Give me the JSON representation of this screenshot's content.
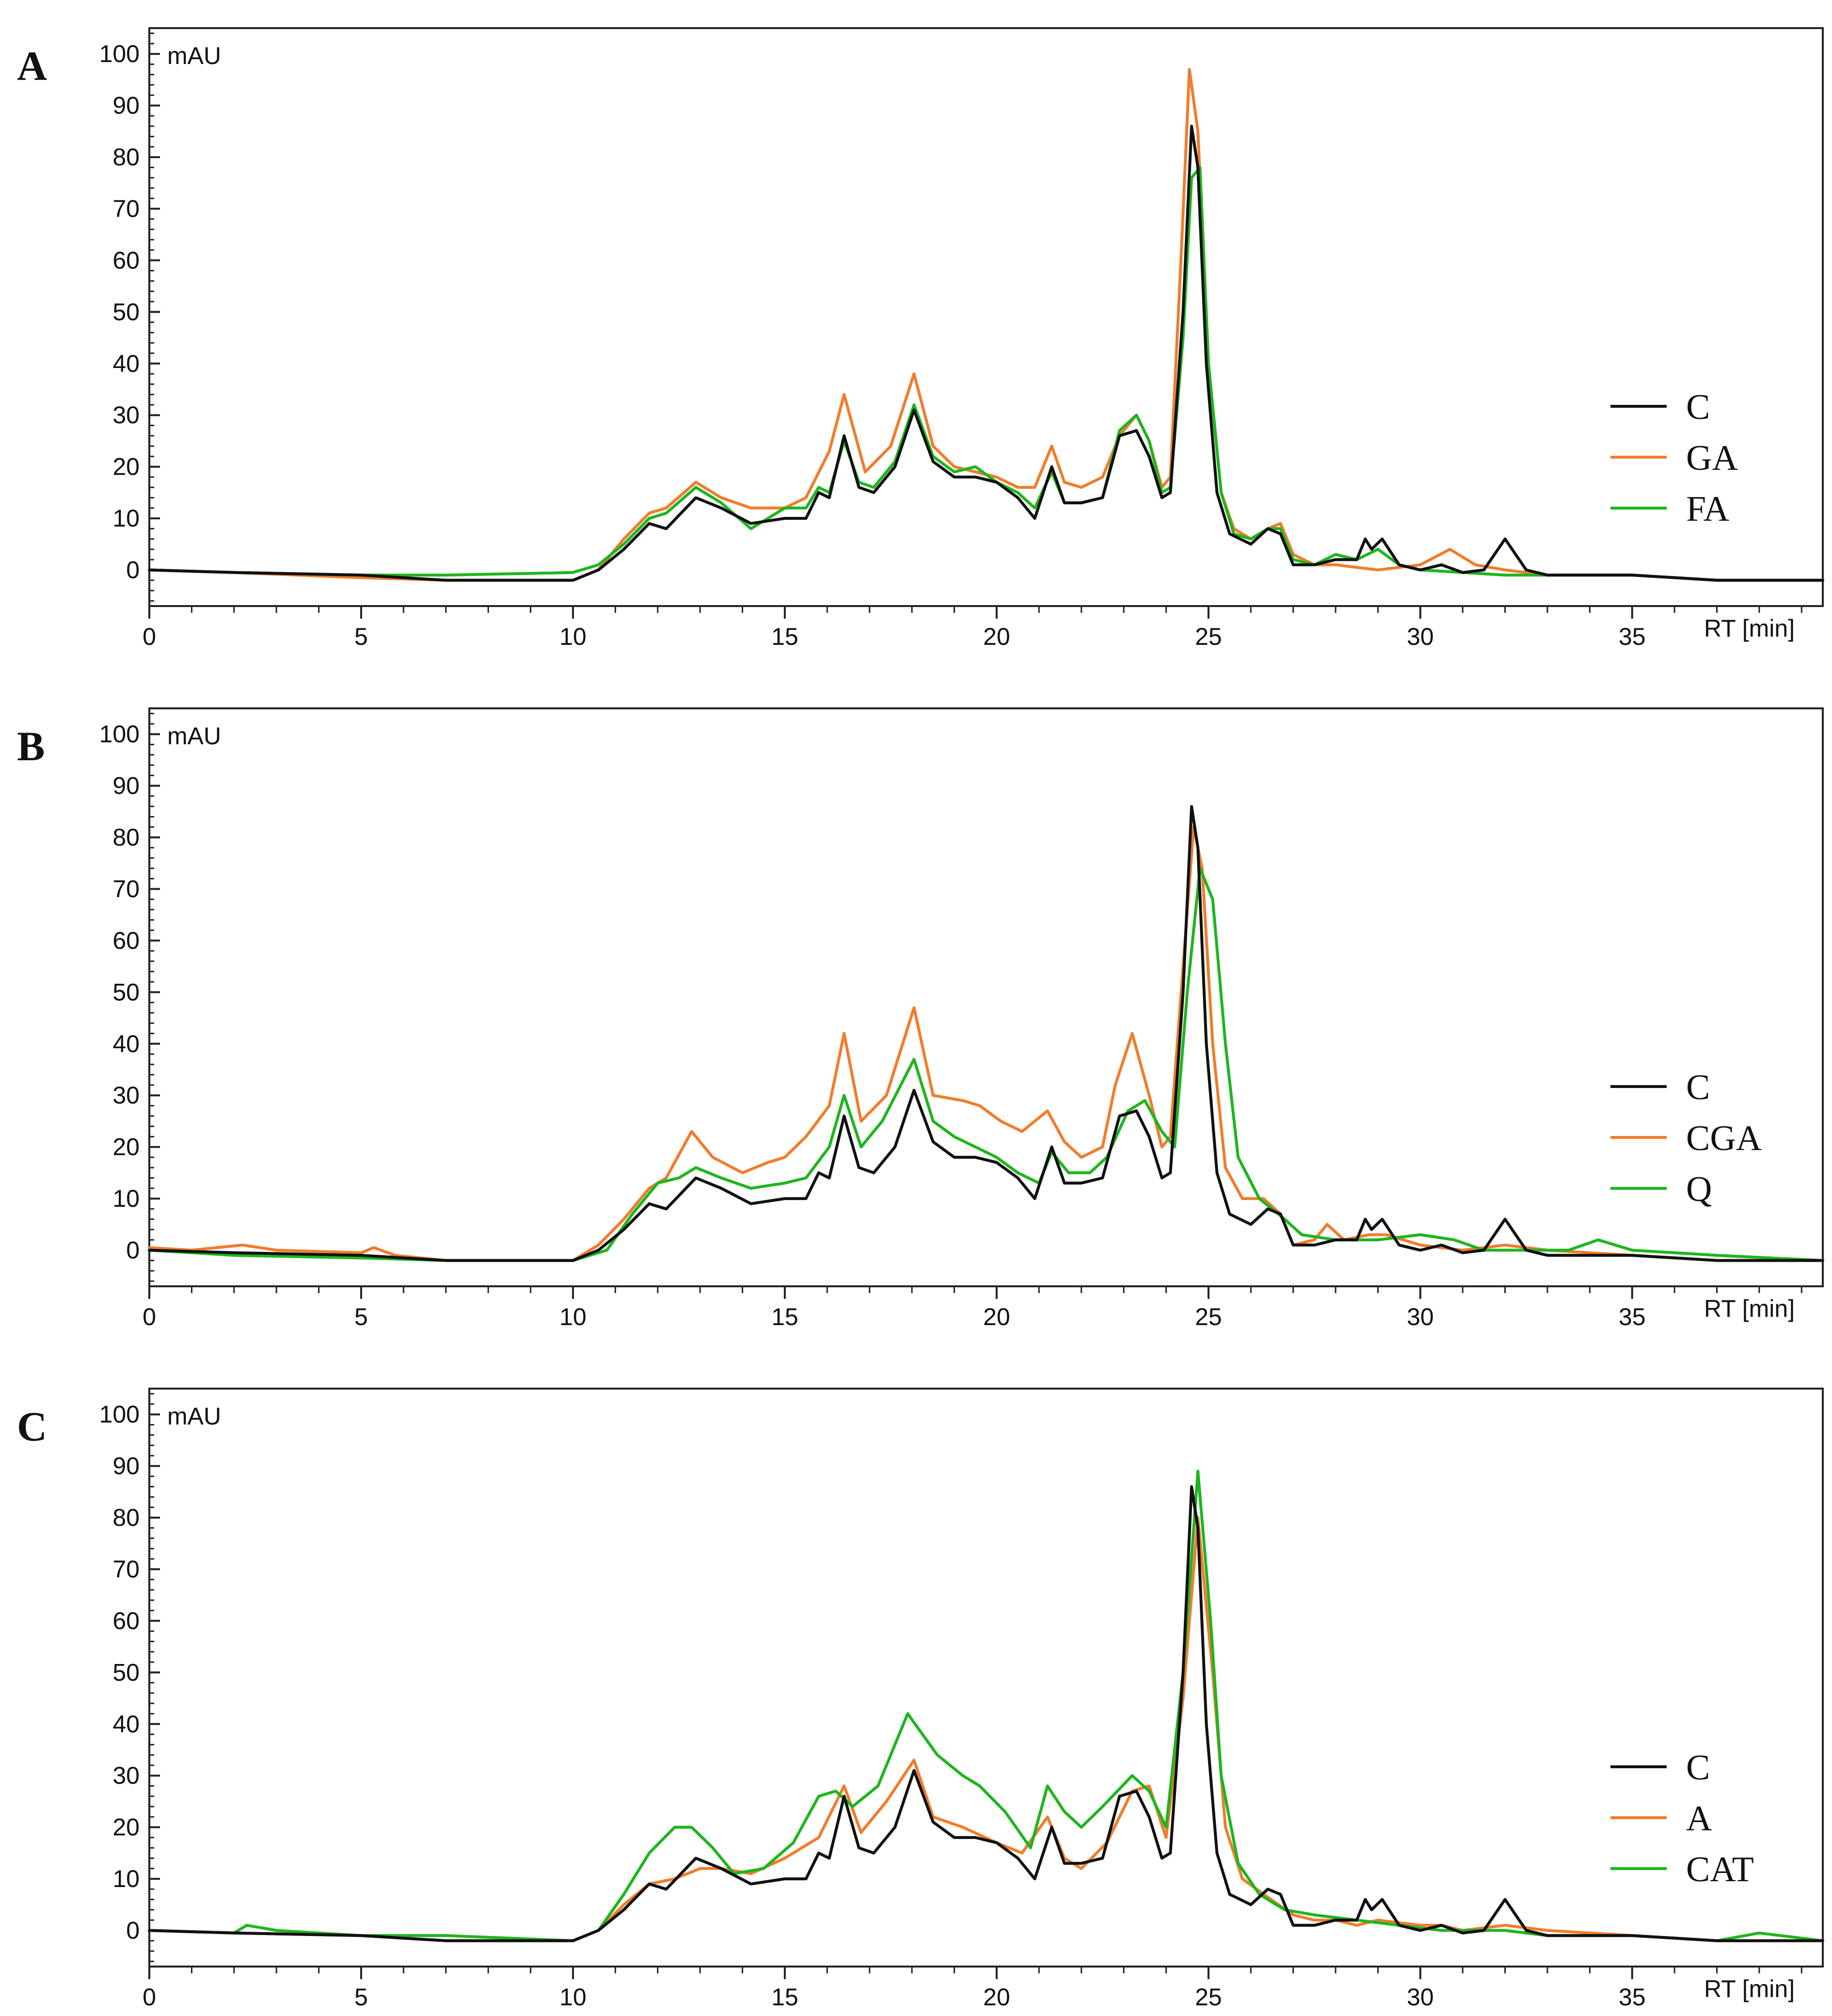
{
  "colors": {
    "C": "#111111",
    "orange": "#ef7d2d",
    "green": "#1fb51f"
  },
  "chart_data": [
    {
      "type": "line",
      "panel": "A",
      "ylabel": "mAU",
      "xlabel": "RT [min]",
      "xlim": [
        0,
        39.5
      ],
      "ylim": [
        -7,
        105
      ],
      "xticks": [
        0,
        5,
        10,
        15,
        20,
        25,
        30,
        35
      ],
      "yticks": [
        0,
        10,
        20,
        30,
        40,
        50,
        60,
        70,
        80,
        90,
        100
      ],
      "series": [
        {
          "name": "C",
          "color": "#111111",
          "x": [
            0,
            2,
            5,
            7,
            10,
            10.6,
            11.2,
            11.8,
            12.2,
            12.9,
            13.5,
            14.2,
            15,
            15.5,
            15.8,
            16.05,
            16.4,
            16.75,
            17.1,
            17.6,
            18.05,
            18.5,
            19,
            19.5,
            20,
            20.5,
            20.9,
            21.3,
            21.6,
            22,
            22.5,
            22.9,
            23.3,
            23.6,
            23.9,
            24.1,
            24.4,
            24.6,
            24.75,
            24.95,
            25.2,
            25.5,
            26,
            26.4,
            26.7,
            27,
            27.5,
            28,
            28.5,
            28.7,
            28.85,
            29.1,
            29.5,
            30,
            30.5,
            31,
            31.5,
            32,
            32.5,
            33,
            35,
            37,
            39.5
          ],
          "y": [
            0,
            -0.5,
            -1,
            -2,
            -2,
            0,
            4,
            9,
            8,
            14,
            12,
            9,
            10,
            10,
            15,
            14,
            26,
            16,
            15,
            20,
            31,
            21,
            18,
            18,
            17,
            14,
            10,
            20,
            13,
            13,
            14,
            26,
            27,
            22,
            14,
            15,
            50,
            86,
            78,
            40,
            15,
            7,
            5,
            8,
            7,
            1,
            1,
            2,
            2,
            6,
            4,
            6,
            1,
            0,
            1,
            -0.5,
            0,
            6,
            0,
            -1,
            -1,
            -2,
            -2
          ]
        },
        {
          "name": "GA",
          "color": "#ef7d2d",
          "x": [
            0,
            2,
            5,
            7,
            10,
            10.6,
            11.2,
            11.8,
            12.2,
            12.9,
            13.5,
            14.2,
            15,
            15.5,
            16.05,
            16.4,
            16.9,
            17.5,
            18.05,
            18.5,
            19,
            19.5,
            20,
            20.5,
            20.9,
            21.3,
            21.6,
            22,
            22.5,
            22.9,
            23.3,
            23.6,
            23.9,
            24.1,
            24.35,
            24.55,
            24.75,
            25,
            25.3,
            25.6,
            26,
            26.4,
            26.7,
            27,
            27.5,
            28,
            29,
            30,
            30.7,
            31.3,
            32,
            33,
            35,
            37,
            39.5
          ],
          "y": [
            0,
            -0.5,
            -1.5,
            -2,
            -2,
            0,
            6,
            11,
            12,
            17,
            14,
            12,
            12,
            14,
            23,
            34,
            19,
            24,
            38,
            24,
            20,
            19,
            18,
            16,
            16,
            24,
            17,
            16,
            18,
            26,
            30,
            25,
            16,
            18,
            60,
            97,
            85,
            40,
            15,
            8,
            6,
            8,
            9,
            3,
            1,
            1,
            0,
            1,
            4,
            1,
            0,
            -1,
            -1,
            -2,
            -2
          ]
        },
        {
          "name": "FA",
          "color": "#1fb51f",
          "x": [
            0,
            2,
            5,
            7,
            10,
            10.6,
            11.2,
            11.8,
            12.2,
            12.9,
            13.5,
            14.2,
            15,
            15.5,
            15.8,
            16.05,
            16.4,
            16.75,
            17.1,
            17.6,
            18.05,
            18.5,
            19,
            19.5,
            20,
            20.5,
            20.9,
            21.3,
            21.6,
            22,
            22.5,
            22.9,
            23.3,
            23.6,
            23.9,
            24.1,
            24.4,
            24.6,
            24.8,
            25,
            25.3,
            25.6,
            26,
            26.4,
            26.7,
            27,
            27.5,
            28,
            28.5,
            29,
            29.5,
            30,
            31,
            32,
            33,
            35,
            37,
            39.5
          ],
          "y": [
            0,
            -0.5,
            -1,
            -1,
            -0.5,
            1,
            5,
            10,
            11,
            16,
            13,
            8,
            12,
            12,
            16,
            15,
            25,
            17,
            16,
            21,
            32,
            22,
            19,
            20,
            17,
            15,
            12,
            19,
            13,
            13,
            14,
            27,
            30,
            25,
            15,
            16,
            45,
            76,
            78,
            40,
            15,
            7,
            6,
            8,
            8,
            2,
            1,
            3,
            2,
            4,
            1,
            0,
            -0.5,
            -1,
            -1,
            -1,
            -2,
            -2
          ]
        }
      ],
      "legend": [
        "C",
        "GA",
        "FA"
      ]
    },
    {
      "type": "line",
      "panel": "B",
      "ylabel": "mAU",
      "xlabel": "RT [min]",
      "xlim": [
        0,
        39.5
      ],
      "ylim": [
        -7,
        105
      ],
      "xticks": [
        0,
        5,
        10,
        15,
        20,
        25,
        30,
        35
      ],
      "yticks": [
        0,
        10,
        20,
        30,
        40,
        50,
        60,
        70,
        80,
        90,
        100
      ],
      "series": [
        {
          "name": "C",
          "color": "#111111",
          "x": [
            0,
            2,
            5,
            7,
            10,
            10.6,
            11.2,
            11.8,
            12.2,
            12.9,
            13.5,
            14.2,
            15,
            15.5,
            15.8,
            16.05,
            16.4,
            16.75,
            17.1,
            17.6,
            18.05,
            18.5,
            19,
            19.5,
            20,
            20.5,
            20.9,
            21.3,
            21.6,
            22,
            22.5,
            22.9,
            23.3,
            23.6,
            23.9,
            24.1,
            24.4,
            24.6,
            24.75,
            24.95,
            25.2,
            25.5,
            26,
            26.4,
            26.7,
            27,
            27.5,
            28,
            28.5,
            28.7,
            28.85,
            29.1,
            29.5,
            30,
            30.5,
            31,
            31.5,
            32,
            32.5,
            33,
            35,
            37,
            39.5
          ],
          "y": [
            0,
            -0.5,
            -1,
            -2,
            -2,
            0,
            4,
            9,
            8,
            14,
            12,
            9,
            10,
            10,
            15,
            14,
            26,
            16,
            15,
            20,
            31,
            21,
            18,
            18,
            17,
            14,
            10,
            20,
            13,
            13,
            14,
            26,
            27,
            22,
            14,
            15,
            50,
            86,
            78,
            40,
            15,
            7,
            5,
            8,
            7,
            1,
            1,
            2,
            2,
            6,
            4,
            6,
            1,
            0,
            1,
            -0.5,
            0,
            6,
            0,
            -1,
            -1,
            -2,
            -2
          ]
        },
        {
          "name": "CGA",
          "color": "#ef7d2d",
          "x": [
            0,
            1,
            2.2,
            3,
            5,
            5.3,
            5.8,
            7,
            10,
            10.6,
            11.2,
            11.8,
            12.2,
            12.8,
            13.3,
            14,
            14.6,
            15,
            15.5,
            16.05,
            16.4,
            16.8,
            17.4,
            18.05,
            18.5,
            19.2,
            19.6,
            20.1,
            20.6,
            21.2,
            21.6,
            22,
            22.5,
            22.8,
            23.2,
            23.6,
            23.9,
            24.1,
            24.4,
            24.65,
            24.85,
            25.1,
            25.4,
            25.8,
            26.3,
            26.7,
            27,
            27.5,
            27.8,
            28.2,
            28.8,
            29.2,
            30,
            31,
            32,
            33,
            35,
            37,
            39.5
          ],
          "y": [
            0.5,
            0,
            1,
            0,
            -0.5,
            0.5,
            -1,
            -2,
            -2,
            1,
            6,
            12,
            14,
            23,
            18,
            15,
            17,
            18,
            22,
            28,
            42,
            25,
            30,
            47,
            30,
            29,
            28,
            25,
            23,
            27,
            21,
            18,
            20,
            32,
            42,
            30,
            20,
            22,
            55,
            82,
            74,
            40,
            16,
            10,
            10,
            7,
            1,
            2,
            5,
            2,
            3,
            3,
            1,
            0,
            1,
            0,
            -1,
            -2,
            -2
          ]
        },
        {
          "name": "Q",
          "color": "#1fb51f",
          "x": [
            0,
            2,
            5,
            7,
            10,
            10.8,
            11.4,
            12,
            12.5,
            12.9,
            13.5,
            14.2,
            15,
            15.5,
            16.05,
            16.4,
            16.8,
            17.3,
            18.05,
            18.5,
            19,
            20,
            20.5,
            21,
            21.3,
            21.7,
            22.2,
            22.6,
            23.1,
            23.5,
            23.9,
            24.2,
            24.5,
            24.8,
            25.1,
            25.4,
            25.7,
            26.2,
            26.8,
            27.2,
            28,
            29,
            30,
            30.8,
            31.5,
            32,
            33.5,
            34.2,
            35,
            37,
            39.5
          ],
          "y": [
            0,
            -1,
            -1.5,
            -2,
            -2,
            0,
            7,
            13,
            14,
            16,
            14,
            12,
            13,
            14,
            20,
            30,
            20,
            25,
            37,
            25,
            22,
            18,
            15,
            13,
            19,
            15,
            15,
            18,
            27,
            29,
            23,
            20,
            50,
            74,
            68,
            40,
            18,
            10,
            6,
            3,
            2,
            2,
            3,
            2,
            0,
            0,
            0,
            2,
            0,
            -1,
            -2
          ]
        }
      ],
      "legend": [
        "C",
        "CGA",
        "Q"
      ]
    },
    {
      "type": "line",
      "panel": "C",
      "ylabel": "mAU",
      "xlabel": "RT [min]",
      "xlim": [
        0,
        39.5
      ],
      "ylim": [
        -7,
        105
      ],
      "xticks": [
        0,
        5,
        10,
        15,
        20,
        25,
        30,
        35
      ],
      "yticks": [
        0,
        10,
        20,
        30,
        40,
        50,
        60,
        70,
        80,
        90,
        100
      ],
      "series": [
        {
          "name": "C",
          "color": "#111111",
          "x": [
            0,
            2,
            5,
            7,
            10,
            10.6,
            11.2,
            11.8,
            12.2,
            12.9,
            13.5,
            14.2,
            15,
            15.5,
            15.8,
            16.05,
            16.4,
            16.75,
            17.1,
            17.6,
            18.05,
            18.5,
            19,
            19.5,
            20,
            20.5,
            20.9,
            21.3,
            21.6,
            22,
            22.5,
            22.9,
            23.3,
            23.6,
            23.9,
            24.1,
            24.4,
            24.6,
            24.75,
            24.95,
            25.2,
            25.5,
            26,
            26.4,
            26.7,
            27,
            27.5,
            28,
            28.5,
            28.7,
            28.85,
            29.1,
            29.5,
            30,
            30.5,
            31,
            31.5,
            32,
            32.5,
            33,
            35,
            37,
            39.5
          ],
          "y": [
            0,
            -0.5,
            -1,
            -2,
            -2,
            0,
            4,
            9,
            8,
            14,
            12,
            9,
            10,
            10,
            15,
            14,
            26,
            16,
            15,
            20,
            31,
            21,
            18,
            18,
            17,
            14,
            10,
            20,
            13,
            13,
            14,
            26,
            27,
            22,
            14,
            15,
            50,
            86,
            78,
            40,
            15,
            7,
            5,
            8,
            7,
            1,
            1,
            2,
            2,
            6,
            4,
            6,
            1,
            0,
            1,
            -0.5,
            0,
            6,
            0,
            -1,
            -1,
            -2,
            -2
          ]
        },
        {
          "name": "A",
          "color": "#ef7d2d",
          "x": [
            0,
            2,
            5,
            7,
            10,
            10.6,
            11.2,
            11.8,
            12.4,
            13,
            13.5,
            14.2,
            15,
            15.8,
            16.4,
            16.8,
            17.4,
            18.05,
            18.5,
            19.2,
            20,
            20.6,
            21.2,
            21.6,
            22,
            22.6,
            23.2,
            23.6,
            24,
            24.4,
            24.75,
            25.1,
            25.4,
            25.8,
            26.3,
            27,
            27.5,
            28,
            28.5,
            29,
            30,
            30.5,
            31,
            32,
            33,
            35,
            37,
            39.5
          ],
          "y": [
            0,
            -0.5,
            -1,
            -2,
            -2,
            0,
            5,
            9,
            10,
            12,
            12,
            11,
            14,
            18,
            28,
            19,
            25,
            33,
            22,
            20,
            17,
            15,
            22,
            14,
            12,
            17,
            27,
            28,
            18,
            45,
            80,
            50,
            20,
            10,
            7,
            3,
            2,
            2,
            1,
            2,
            1,
            1,
            0,
            1,
            0,
            -1,
            -2,
            -2
          ]
        },
        {
          "name": "CAT",
          "color": "#1fb51f",
          "x": [
            0,
            2,
            2.3,
            3,
            5,
            7,
            10,
            10.6,
            11.2,
            11.8,
            12.4,
            12.8,
            13.3,
            13.8,
            14.5,
            15.2,
            15.8,
            16.2,
            16.6,
            17.2,
            17.9,
            18.6,
            19.2,
            19.6,
            20.2,
            20.8,
            21.2,
            21.6,
            22,
            22.5,
            23.2,
            23.6,
            24,
            24.4,
            24.75,
            25.05,
            25.3,
            25.7,
            26.2,
            26.8,
            27.5,
            28.5,
            29.5,
            30.5,
            31.5,
            32,
            33,
            35,
            37,
            38,
            39.5
          ],
          "y": [
            0,
            -0.5,
            1,
            0,
            -1,
            -1,
            -2,
            0,
            7,
            15,
            20,
            20,
            16,
            11,
            12,
            17,
            26,
            27,
            24,
            28,
            42,
            34,
            30,
            28,
            23,
            16,
            28,
            23,
            20,
            24,
            30,
            27,
            20,
            50,
            89,
            60,
            30,
            13,
            7,
            4,
            3,
            2,
            1,
            0,
            0,
            0,
            -1,
            -1,
            -2,
            -0.5,
            -2
          ]
        }
      ],
      "legend": [
        "C",
        "A",
        "CAT"
      ]
    }
  ]
}
